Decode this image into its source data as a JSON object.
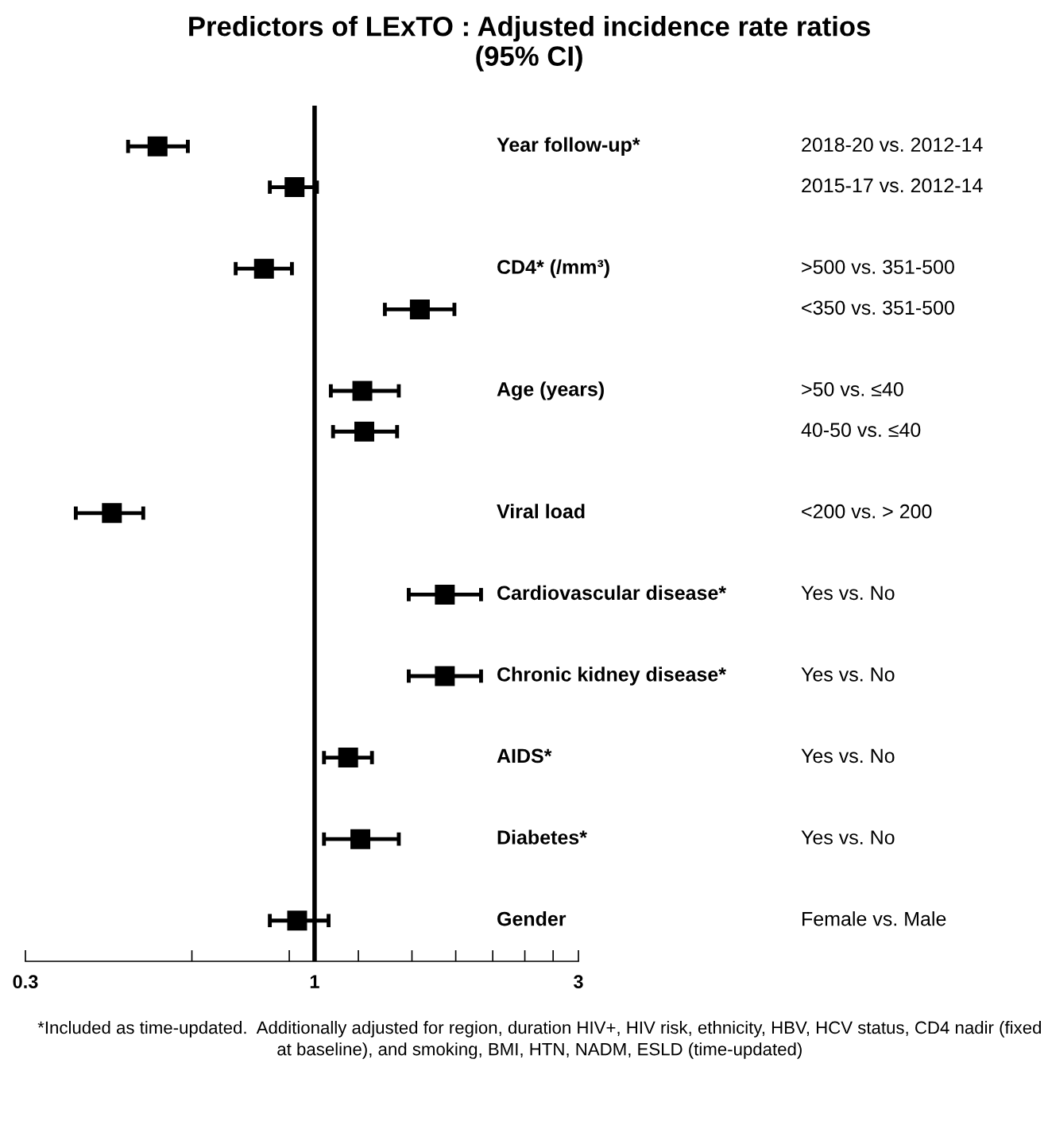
{
  "chart_data": {
    "type": "scatter",
    "orientation": "horizontal",
    "title": "Predictors of LExTO : Adjusted incidence rate ratios\n(95% CI)",
    "categories": [
      "Year follow-up*",
      null,
      null,
      "CD4* (/mm³)",
      null,
      null,
      "Age (years)",
      null,
      null,
      "Viral load",
      null,
      "Cardiovascular disease*",
      null,
      "Chronic kidney disease*",
      null,
      "AIDS*",
      null,
      "Diabetes*",
      null,
      "Gender"
    ],
    "y2_categories": [
      "2018-20 vs. 2012-14",
      "2015-17 vs. 2012-14",
      null,
      ">500 vs. 351-500",
      "<350 vs. 351-500",
      null,
      ">50 vs. ≤40",
      "40-50 vs. ≤40",
      null,
      "<200 vs. > 200",
      null,
      "Yes vs. No",
      null,
      "Yes vs. No",
      null,
      "Yes vs. No",
      null,
      "Yes vs. No",
      null,
      "Female vs. Male"
    ],
    "values": [
      0.52,
      0.92,
      null,
      0.81,
      1.55,
      null,
      1.22,
      1.23,
      null,
      0.43,
      null,
      1.72,
      null,
      1.72,
      null,
      1.15,
      null,
      1.21,
      null,
      0.93
    ],
    "errors": [
      [
        0.46,
        0.59
      ],
      [
        0.83,
        1.01
      ],
      null,
      [
        0.72,
        0.91
      ],
      [
        1.34,
        1.79
      ],
      null,
      [
        1.07,
        1.42
      ],
      [
        1.08,
        1.41
      ],
      null,
      [
        0.37,
        0.49
      ],
      null,
      [
        1.48,
        2.0
      ],
      null,
      [
        1.48,
        2.0
      ],
      null,
      [
        1.04,
        1.27
      ],
      null,
      [
        1.04,
        1.42
      ],
      null,
      [
        0.83,
        1.06
      ]
    ],
    "color": "#000000",
    "marker": "square",
    "log": "x",
    "xlim": [
      0.3,
      3
    ],
    "xticks": [
      0.3,
      {
        "value": 0.6,
        "label": null
      },
      {
        "value": 0.9,
        "label": null
      },
      1,
      {
        "value": 1.2,
        "label": null
      },
      {
        "value": 1.5,
        "label": null
      },
      {
        "value": 1.8,
        "label": null
      },
      {
        "value": 2.1,
        "label": null
      },
      {
        "value": 2.4,
        "label": null
      },
      {
        "value": 2.7,
        "label": null
      },
      3
    ],
    "ref_lines": [
      {
        "axis": "x",
        "value": 1,
        "label": null,
        "color": "#000000",
        "line_style": "solid"
      }
    ],
    "grid": false,
    "legend": false,
    "tick_labels": "x",
    "annotations": [
      "*Included as time-updated.  Additionally adjusted for region, duration HIV+, HIV risk, ethnicity, HBV, HCV status, CD4 nadir (fixed at baseline), and smoking, BMI, HTN, NADM, ESLD (time-updated)"
    ]
  }
}
